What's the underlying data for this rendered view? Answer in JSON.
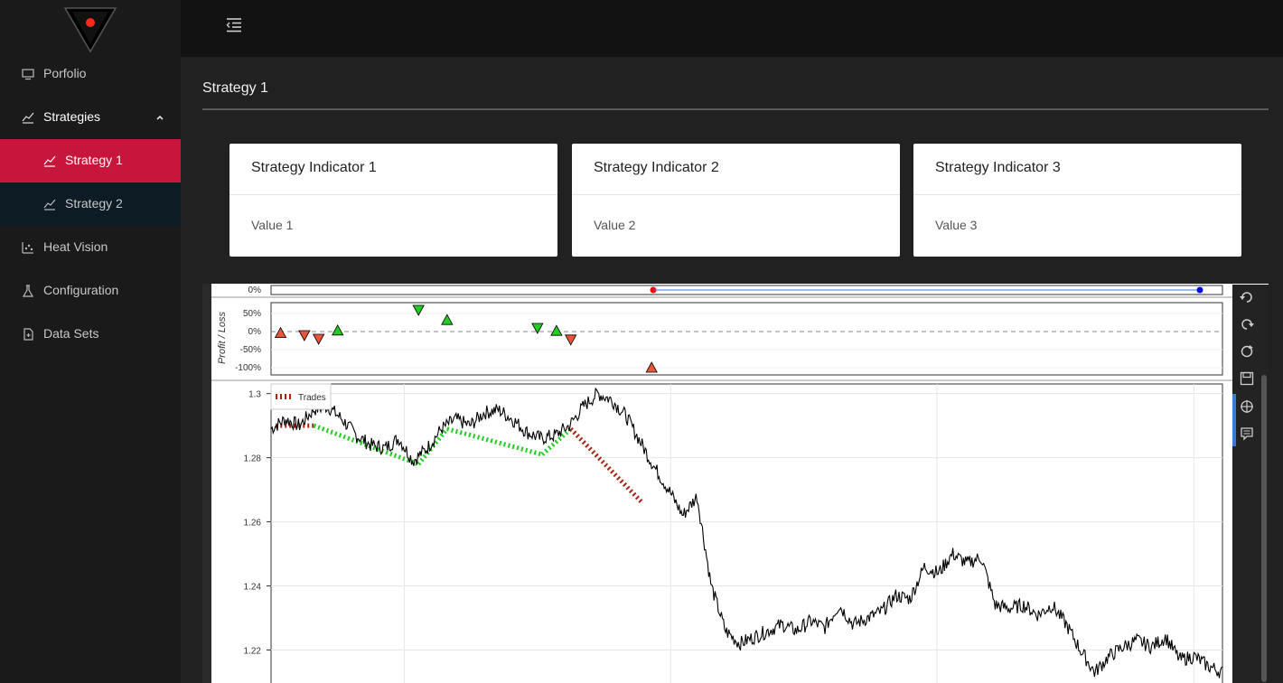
{
  "sidebar": {
    "items": [
      {
        "label": "Porfolio",
        "icon": "monitor-icon"
      },
      {
        "label": "Strategies",
        "icon": "chart-line-icon"
      },
      {
        "label": "Strategy 1",
        "icon": "chart-line-icon"
      },
      {
        "label": "Strategy 2",
        "icon": "chart-line-icon"
      },
      {
        "label": "Heat Vision",
        "icon": "scatter-icon"
      },
      {
        "label": "Configuration",
        "icon": "flask-icon"
      },
      {
        "label": "Data Sets",
        "icon": "file-icon"
      }
    ]
  },
  "page": {
    "title": "Strategy 1"
  },
  "cards": [
    {
      "title": "Strategy Indicator 1",
      "value": "Value 1"
    },
    {
      "title": "Strategy Indicator 2",
      "value": "Value 2"
    },
    {
      "title": "Strategy Indicator 3",
      "value": "Value 3"
    }
  ],
  "colors": {
    "accent": "#c7163b",
    "sub_bg": "#0c1b24",
    "sidebar_bg": "#1a1a1a",
    "win": "#22cc22",
    "loss": "#e8553d",
    "trade_loss": "#aa2211"
  },
  "toolbar": {
    "icons": [
      "undo-icon",
      "redo-icon",
      "reset-icon",
      "save-icon",
      "crosshair-icon",
      "hover-icon"
    ]
  },
  "chart_data": [
    {
      "type": "line",
      "title": "",
      "yticks": [
        "0%"
      ],
      "markers": [
        {
          "color": "red"
        },
        {
          "color": "blue"
        }
      ]
    },
    {
      "type": "scatter",
      "ylabel": "Profit / Loss",
      "yticks": [
        "50%",
        "0%",
        "-50%",
        "-100%"
      ],
      "ylim": [
        -100,
        60
      ],
      "points": [
        {
          "x": 0.01,
          "y": -4,
          "dir": "up",
          "color": "red"
        },
        {
          "x": 0.035,
          "y": -10,
          "dir": "down",
          "color": "red"
        },
        {
          "x": 0.05,
          "y": -20,
          "dir": "down",
          "color": "red"
        },
        {
          "x": 0.07,
          "y": 3,
          "dir": "up",
          "color": "green"
        },
        {
          "x": 0.155,
          "y": 60,
          "dir": "down",
          "color": "green"
        },
        {
          "x": 0.185,
          "y": 32,
          "dir": "up",
          "color": "green"
        },
        {
          "x": 0.28,
          "y": 10,
          "dir": "down",
          "color": "green"
        },
        {
          "x": 0.3,
          "y": 2,
          "dir": "up",
          "color": "green"
        },
        {
          "x": 0.315,
          "y": -22,
          "dir": "down",
          "color": "red"
        },
        {
          "x": 0.4,
          "y": -100,
          "dir": "up",
          "color": "red"
        }
      ]
    },
    {
      "type": "line",
      "legend": [
        "Trades"
      ],
      "yticks": [
        "1.3",
        "1.28",
        "1.26",
        "1.24",
        "1.22"
      ],
      "ylim": [
        1.21,
        1.303
      ],
      "price": [
        1.289,
        1.292,
        1.29,
        1.295,
        1.296,
        1.292,
        1.287,
        1.284,
        1.283,
        1.286,
        1.279,
        1.283,
        1.289,
        1.292,
        1.29,
        1.294,
        1.295,
        1.292,
        1.288,
        1.286,
        1.287,
        1.29,
        1.296,
        1.3,
        1.298,
        1.293,
        1.285,
        1.277,
        1.27,
        1.262,
        1.268,
        1.24,
        1.226,
        1.222,
        1.224,
        1.226,
        1.228,
        1.226,
        1.229,
        1.227,
        1.234,
        1.228,
        1.23,
        1.232,
        1.237,
        1.236,
        1.246,
        1.244,
        1.25,
        1.247,
        1.249,
        1.234,
        1.233,
        1.234,
        1.231,
        1.234,
        1.228,
        1.22,
        1.213,
        1.218,
        1.221,
        1.223,
        1.221,
        1.224,
        1.217,
        1.218,
        1.215,
        1.213
      ],
      "trades": [
        {
          "x": [
            0.005,
            0.045
          ],
          "y": [
            1.29,
            1.29
          ],
          "result": "loss"
        },
        {
          "x": [
            0.045,
            0.155
          ],
          "y": [
            1.29,
            1.278
          ],
          "result": "win"
        },
        {
          "x": [
            0.155,
            0.185
          ],
          "y": [
            1.278,
            1.289
          ],
          "result": "win"
        },
        {
          "x": [
            0.185,
            0.285
          ],
          "y": [
            1.289,
            1.281
          ],
          "result": "win"
        },
        {
          "x": [
            0.285,
            0.315
          ],
          "y": [
            1.281,
            1.289
          ],
          "result": "win"
        },
        {
          "x": [
            0.315,
            0.39
          ],
          "y": [
            1.289,
            1.266
          ],
          "result": "loss"
        }
      ]
    }
  ]
}
